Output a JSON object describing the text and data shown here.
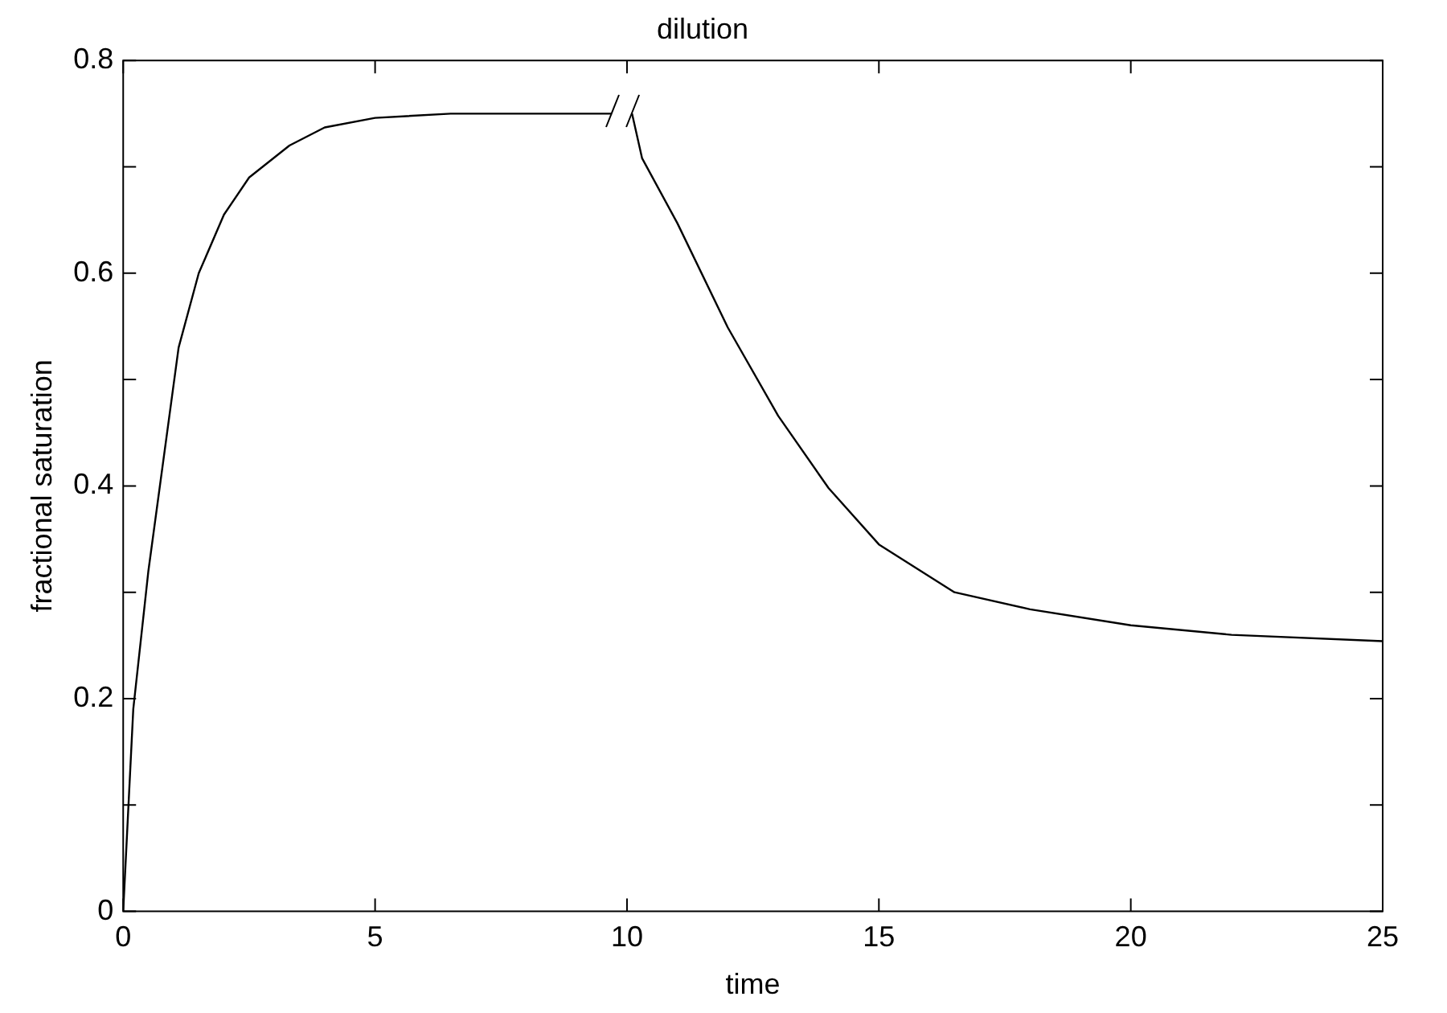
{
  "chart_data": {
    "type": "line",
    "title": "dilution",
    "xlabel": "time",
    "ylabel": "fractional saturation",
    "xlim": [
      0,
      25
    ],
    "ylim": [
      0,
      0.8
    ],
    "xticks": [
      0,
      5,
      10,
      15,
      20,
      25
    ],
    "yticks": [
      0,
      {
        "value": 0.1,
        "label": null
      },
      0.2,
      {
        "value": 0.3,
        "label": null
      },
      0.4,
      {
        "value": 0.5,
        "label": null
      },
      0.6,
      {
        "value": 0.7,
        "label": null
      },
      0.8
    ],
    "grid": false,
    "legend": false,
    "marker": "none",
    "line_style": "solid",
    "series": [
      {
        "color": "#000000",
        "x": [
          0,
          0.2,
          0.5,
          1.1,
          1.5,
          2,
          2.5,
          3.3,
          4,
          5,
          6.5,
          8,
          9.7,
          9.9,
          10.1,
          10.3,
          11,
          12,
          13,
          14,
          15,
          16.5,
          18,
          20,
          22,
          25
        ],
        "values": [
          0,
          0.19,
          0.32,
          0.53,
          0.6,
          0.655,
          0.69,
          0.72,
          0.737,
          0.746,
          0.75,
          0.75,
          0.75,
          null,
          0.75,
          0.708,
          0.647,
          0.549,
          0.466,
          0.398,
          0.345,
          0.3,
          0.284,
          0.269,
          0.26,
          0.254
        ]
      }
    ]
  }
}
